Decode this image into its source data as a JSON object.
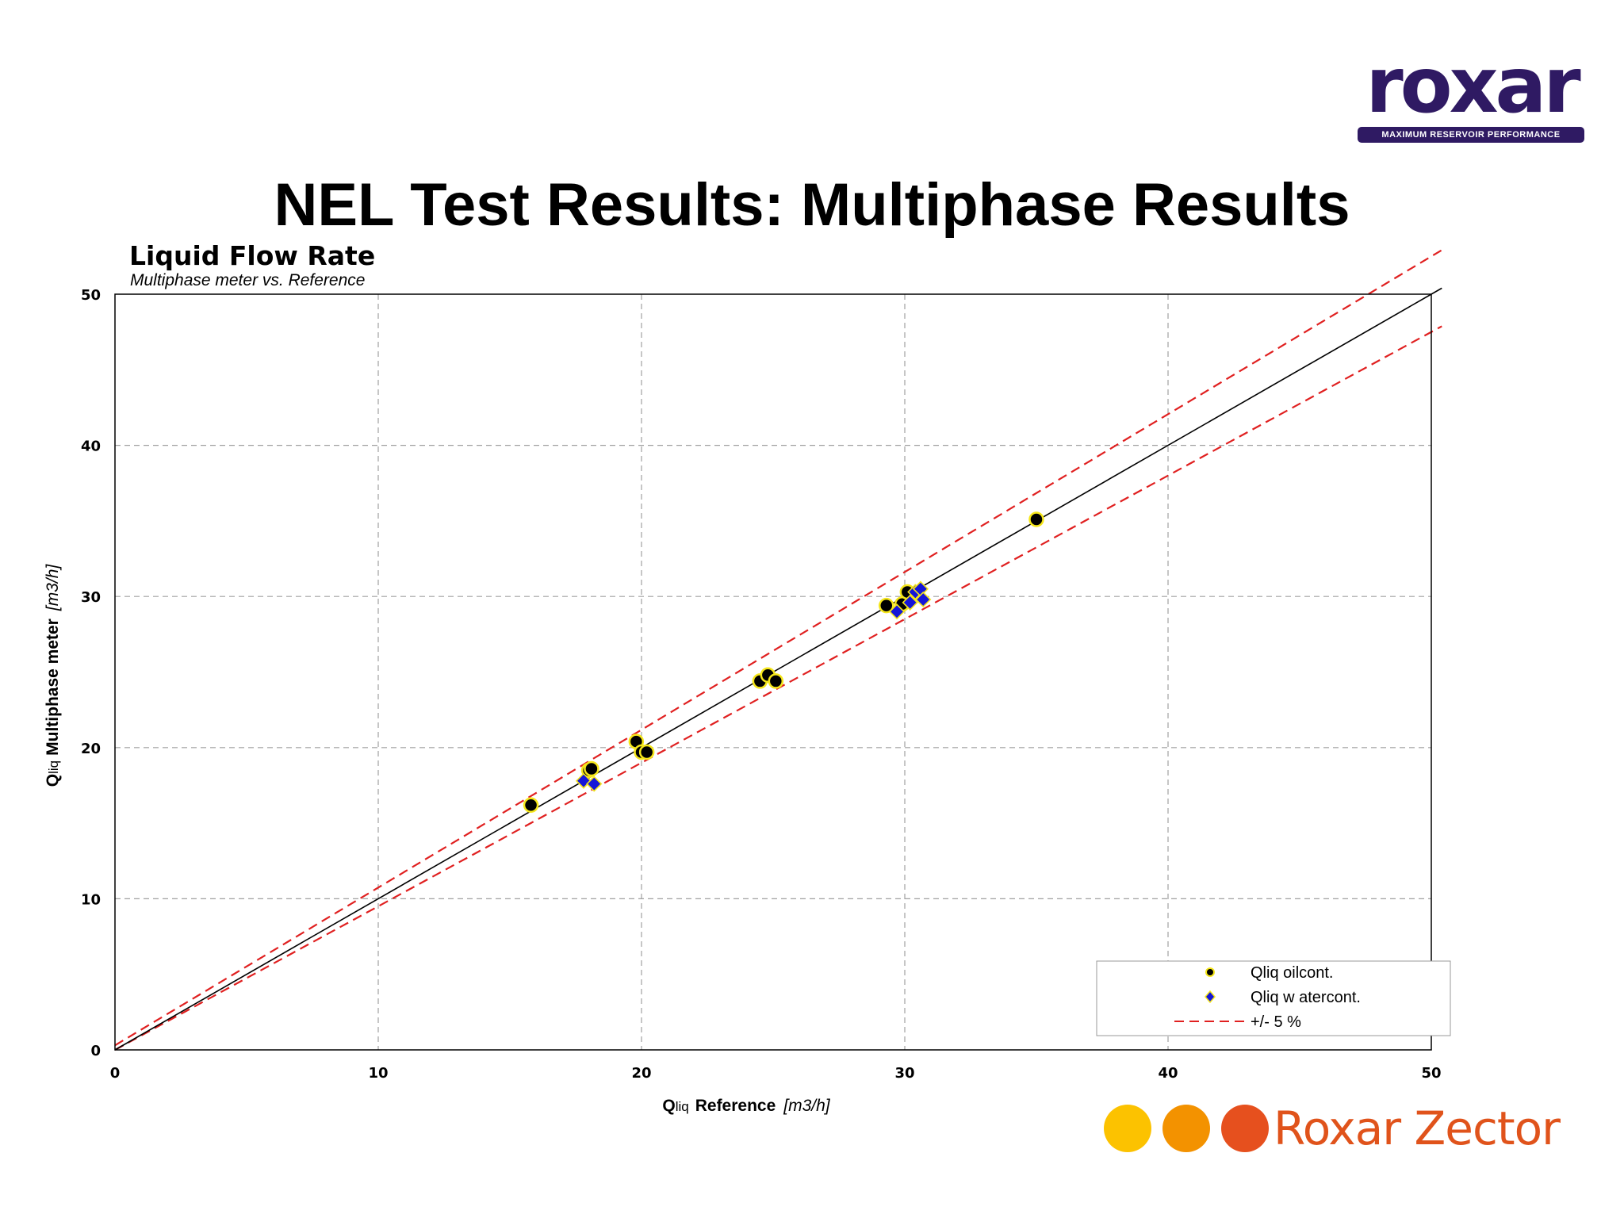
{
  "slide": {
    "title": "NEL Test Results: Multiphase Results"
  },
  "logo": {
    "brand": "roxar",
    "tagline": "MAXIMUM RESERVOIR PERFORMANCE",
    "brand_color": "#2f1a63"
  },
  "footer_brand": {
    "name": "Roxar Zector",
    "dot_colors": [
      "#fcc200",
      "#f39200",
      "#e6501e"
    ],
    "text_color": "#e0531b"
  },
  "chart_data": {
    "type": "scatter",
    "title": "Liquid Flow Rate",
    "subtitle": "Multiphase meter vs. Reference",
    "xlabel": {
      "sym": "Q",
      "sub": "liq",
      "text": "Reference",
      "unit": "[m3/h]"
    },
    "ylabel": {
      "sym": "Q",
      "sub": "liq",
      "text": "Multiphase meter",
      "unit": "[m3/h]"
    },
    "xlim": [
      0,
      50
    ],
    "ylim": [
      0,
      50
    ],
    "xticks": [
      0,
      10,
      20,
      30,
      40,
      50
    ],
    "yticks": [
      0,
      10,
      20,
      30,
      40,
      50
    ],
    "grid": true,
    "legend_position": "bottom-right",
    "series": [
      {
        "name": "Qliq oilcont.",
        "marker": "circle",
        "color": "#000000",
        "edge_color": "#f5e61a",
        "points": [
          [
            15.8,
            16.2
          ],
          [
            18.0,
            18.5
          ],
          [
            18.1,
            18.6
          ],
          [
            19.8,
            20.4
          ],
          [
            20.0,
            19.7
          ],
          [
            20.2,
            19.7
          ],
          [
            24.5,
            24.4
          ],
          [
            24.8,
            24.8
          ],
          [
            25.1,
            24.4
          ],
          [
            29.3,
            29.4
          ],
          [
            29.9,
            29.5
          ],
          [
            30.1,
            30.3
          ],
          [
            35.0,
            35.1
          ]
        ]
      },
      {
        "name": "Qliq w atercont.",
        "marker": "diamond",
        "color": "#1515d8",
        "edge_color": "#f5e61a",
        "points": [
          [
            17.8,
            17.8
          ],
          [
            18.2,
            17.6
          ],
          [
            29.7,
            29.0
          ],
          [
            30.2,
            29.6
          ],
          [
            30.4,
            30.3
          ],
          [
            30.6,
            30.5
          ],
          [
            30.7,
            29.8
          ]
        ]
      },
      {
        "name": "+/- 5 %",
        "marker": "dashed-line",
        "color": "#e02020",
        "lines": [
          {
            "x": [
              0,
              50.4
            ],
            "y": [
              0.3,
              52.92
            ]
          },
          {
            "x": [
              0,
              50.4
            ],
            "y": [
              0,
              47.88
            ]
          }
        ]
      }
    ],
    "reference_line": {
      "x": [
        0,
        50.4
      ],
      "y": [
        0,
        50.4
      ],
      "color": "#000000"
    }
  }
}
